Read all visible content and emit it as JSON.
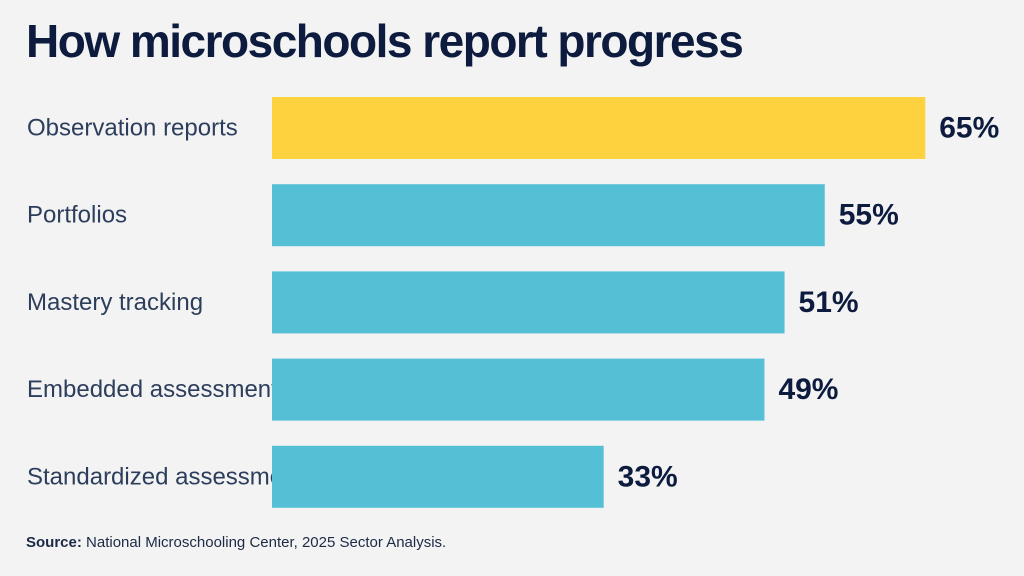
{
  "chart_data": {
    "type": "bar",
    "orientation": "horizontal",
    "title": "How microschools report progress",
    "categories": [
      "Observation reports",
      "Portfolios",
      "Mastery tracking",
      "Embedded assessments",
      "Standardized assessments"
    ],
    "values": [
      65,
      55,
      51,
      49,
      33
    ],
    "value_labels": [
      "65%",
      "55%",
      "51%",
      "49%",
      "33%"
    ],
    "unit": "%",
    "xlim": [
      0,
      100
    ],
    "grid": false,
    "highlight_color": "#fdd23e",
    "bar_color": "#55bfd6"
  },
  "source": {
    "label": "Source:",
    "text": " National Microschooling Center, 2025 Sector Analysis."
  }
}
